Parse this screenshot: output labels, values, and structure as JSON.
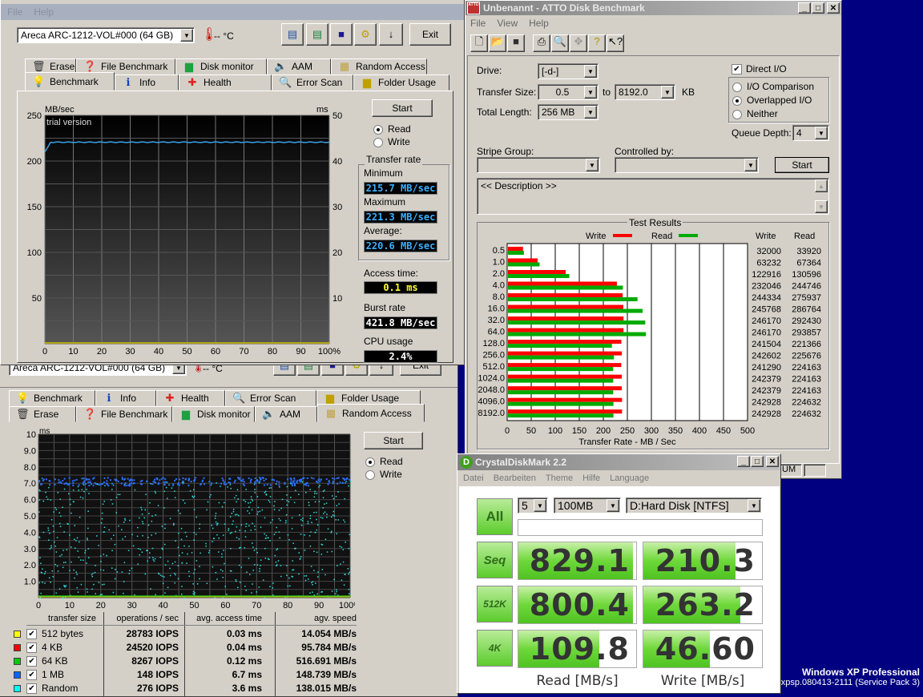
{
  "hdtune_top": {
    "menu": [
      "File",
      "Help"
    ],
    "drive": "Areca  ARC-1212-VOL#000 (64 GB)",
    "temperature": "-- °C",
    "exit_label": "Exit",
    "tabs_row1": [
      {
        "label": "Erase",
        "icon": "trash-icon"
      },
      {
        "label": "File Benchmark",
        "icon": "file-benchmark-icon"
      },
      {
        "label": "Disk monitor",
        "icon": "disk-monitor-icon"
      },
      {
        "label": "AAM",
        "icon": "speaker-icon"
      },
      {
        "label": "Random Access",
        "icon": "random-access-icon"
      }
    ],
    "tabs_row2": [
      {
        "label": "Benchmark",
        "icon": "lightbulb-icon"
      },
      {
        "label": "Info",
        "icon": "info-icon"
      },
      {
        "label": "Health",
        "icon": "health-cross-icon"
      },
      {
        "label": "Error Scan",
        "icon": "magnifier-icon"
      },
      {
        "label": "Folder Usage",
        "icon": "folder-icon"
      }
    ],
    "active_tab": "Benchmark",
    "chart": {
      "left_unit": "MB/sec",
      "right_unit": "ms",
      "watermark": "trial version",
      "left_ticks": [
        "250",
        "200",
        "150",
        "100",
        "50"
      ],
      "right_ticks": [
        "50",
        "40",
        "30",
        "20",
        "10"
      ],
      "x_ticks": [
        "0",
        "10",
        "20",
        "30",
        "40",
        "50",
        "60",
        "70",
        "80",
        "90",
        "100%"
      ]
    },
    "start_label": "Start",
    "read_label": "Read",
    "write_label": "Write",
    "mode": "Read",
    "transfer_rate_label": "Transfer rate",
    "minimum_label": "Minimum",
    "minimum": "215.7 MB/sec",
    "maximum_label": "Maximum",
    "maximum": "221.3 MB/sec",
    "average_label": "Average:",
    "average": "220.6 MB/sec",
    "access_time_label": "Access time:",
    "access_time": "0.1 ms",
    "burst_rate_label": "Burst rate",
    "burst_rate": "421.8 MB/sec",
    "cpu_usage_label": "CPU usage",
    "cpu_usage": "2.4%"
  },
  "hdtune_bottom": {
    "drive": "Areca  ARC-1212-VOL#000 (64 GB)",
    "temperature": "-- °C",
    "exit_label": "Exit",
    "tabs_row1": [
      {
        "label": "Benchmark",
        "icon": "lightbulb-icon"
      },
      {
        "label": "Info",
        "icon": "info-icon"
      },
      {
        "label": "Health",
        "icon": "health-cross-icon"
      },
      {
        "label": "Error Scan",
        "icon": "magnifier-icon"
      },
      {
        "label": "Folder Usage",
        "icon": "folder-icon"
      }
    ],
    "tabs_row2": [
      {
        "label": "Erase",
        "icon": "trash-icon"
      },
      {
        "label": "File Benchmark",
        "icon": "file-benchmark-icon"
      },
      {
        "label": "Disk monitor",
        "icon": "disk-monitor-icon"
      },
      {
        "label": "AAM",
        "icon": "speaker-icon"
      },
      {
        "label": "Random Access",
        "icon": "random-access-icon"
      }
    ],
    "active_tab": "Random Access",
    "chart": {
      "unit": "ms",
      "y_ticks": [
        "10",
        "9.0",
        "8.0",
        "7.0",
        "6.0",
        "5.0",
        "4.0",
        "3.0",
        "2.0",
        "1.0"
      ],
      "x_ticks": [
        "0",
        "10",
        "20",
        "30",
        "40",
        "50",
        "60",
        "70",
        "80",
        "90",
        "100%"
      ]
    },
    "start_label": "Start",
    "read_label": "Read",
    "write_label": "Write",
    "mode": "Read",
    "table": {
      "headers": [
        "transfer size",
        "operations / sec",
        "avg. access time",
        "agv. speed"
      ],
      "rows": [
        {
          "color": "#ffff00",
          "size": "512 bytes",
          "ops": "28783 IOPS",
          "access": "0.03 ms",
          "speed": "14.054 MB/s"
        },
        {
          "color": "#ff0000",
          "size": "4 KB",
          "ops": "24520 IOPS",
          "access": "0.04 ms",
          "speed": "95.784 MB/s"
        },
        {
          "color": "#00cc00",
          "size": "64 KB",
          "ops": "8267 IOPS",
          "access": "0.12 ms",
          "speed": "516.691 MB/s"
        },
        {
          "color": "#0066ff",
          "size": "1 MB",
          "ops": "148 IOPS",
          "access": "6.7 ms",
          "speed": "148.739 MB/s"
        },
        {
          "color": "#00ffff",
          "size": "Random",
          "ops": "276 IOPS",
          "access": "3.6 ms",
          "speed": "138.015 MB/s"
        }
      ]
    }
  },
  "atto": {
    "title": "Unbenannt - ATTO Disk Benchmark",
    "menu": [
      "File",
      "View",
      "Help"
    ],
    "drive_label": "Drive:",
    "drive": "[-d-]",
    "transfer_size_label": "Transfer Size:",
    "transfer_from": "0.5",
    "to_label": "to",
    "transfer_to": "8192.0",
    "kb_label": "KB",
    "total_length_label": "Total Length:",
    "total_length": "256 MB",
    "direct_io_label": "Direct I/O",
    "direct_io": true,
    "io_options": [
      "I/O Comparison",
      "Overlapped I/O",
      "Neither"
    ],
    "io_selected": "Overlapped I/O",
    "queue_depth_label": "Queue Depth:",
    "queue_depth": "4",
    "stripe_group_label": "Stripe Group:",
    "controlled_by_label": "Controlled by:",
    "start_label": "Start",
    "description": "<< Description >>",
    "results_label": "Test Results",
    "status_text": "UM"
  },
  "chart_data": {
    "type": "bar",
    "orientation": "horizontal",
    "categories": [
      "0.5",
      "1.0",
      "2.0",
      "4.0",
      "8.0",
      "16.0",
      "32.0",
      "64.0",
      "128.0",
      "256.0",
      "512.0",
      "1024.0",
      "2048.0",
      "4096.0",
      "8192.0"
    ],
    "series": [
      {
        "name": "Write",
        "color": "#ff0000",
        "values": [
          32000,
          63232,
          122916,
          232046,
          244334,
          245768,
          246170,
          246170,
          241504,
          242602,
          241290,
          242379,
          242379,
          242928,
          242928
        ]
      },
      {
        "name": "Read",
        "color": "#00aa00",
        "values": [
          33920,
          67364,
          130596,
          244746,
          275937,
          286764,
          292430,
          293857,
          221366,
          225676,
          224163,
          224163,
          224163,
          224632,
          224632
        ]
      }
    ],
    "column_headers": [
      "Write",
      "Read"
    ],
    "x_ticks": [
      "0",
      "50",
      "100",
      "150",
      "200",
      "250",
      "300",
      "350",
      "400",
      "450",
      "500"
    ],
    "xlabel": "Transfer Rate - MB / Sec",
    "xlim": [
      0,
      500
    ],
    "legend": "top"
  },
  "cdm": {
    "title": "CrystalDiskMark 2.2",
    "menu": [
      "Datei",
      "Bearbeiten",
      "Theme",
      "Hilfe",
      "Language"
    ],
    "all_label": "All",
    "runs": "5",
    "size": "100MB",
    "drive": "D:Hard Disk [NTFS]",
    "rows": [
      {
        "label": "Seq",
        "read": "829.1",
        "write": "210.3",
        "read_fill": 0.97,
        "write_fill": 0.78
      },
      {
        "label": "512K",
        "read": "800.4",
        "write": "263.2",
        "read_fill": 0.97,
        "write_fill": 0.82
      },
      {
        "label": "4K",
        "read": "109.8",
        "write": "46.60",
        "read_fill": 0.69,
        "write_fill": 0.56
      }
    ],
    "read_header": "Read [MB/s]",
    "write_header": "Write [MB/s]"
  },
  "desktop": {
    "os_name": "Windows XP Professional",
    "build": "xpsp.080413-2111 (Service Pack 3)"
  }
}
